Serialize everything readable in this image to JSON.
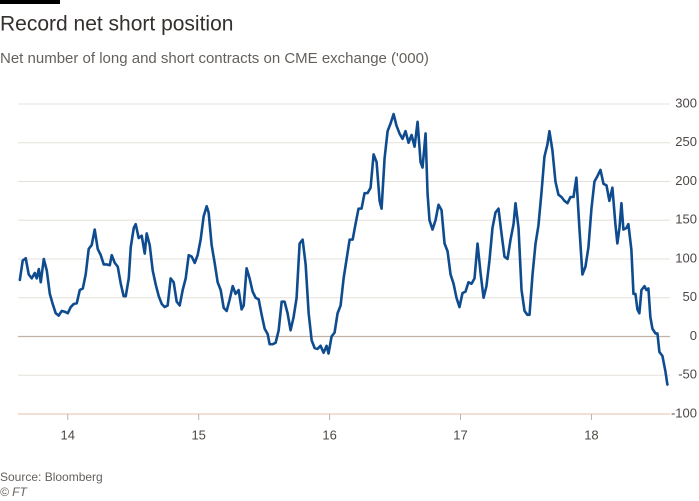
{
  "chart_data": {
    "type": "line",
    "title": "Record net short position",
    "subtitle": "Net number of long and short contracts on CME exchange ('000)",
    "source": "Source: Bloomberg",
    "credit": "© FT",
    "color": "#0f4c8f",
    "xlim": [
      13.62,
      18.6
    ],
    "xticks": [
      14,
      15,
      16,
      17,
      18
    ],
    "ylim": [
      -100,
      300
    ],
    "yticks": [
      -100,
      -50,
      0,
      50,
      100,
      150,
      200,
      250,
      300
    ],
    "grid": true,
    "x": [
      13.634,
      13.656,
      13.679,
      13.702,
      13.725,
      13.748,
      13.763,
      13.779,
      13.794,
      13.817,
      13.84,
      13.863,
      13.885,
      13.908,
      13.931,
      13.954,
      13.977,
      14.0,
      14.023,
      14.046,
      14.069,
      14.092,
      14.115,
      14.137,
      14.16,
      14.183,
      14.206,
      14.229,
      14.252,
      14.275,
      14.298,
      14.321,
      14.336,
      14.359,
      14.382,
      14.405,
      14.427,
      14.443,
      14.466,
      14.481,
      14.504,
      14.519,
      14.542,
      14.565,
      14.588,
      14.603,
      14.626,
      14.649,
      14.672,
      14.695,
      14.718,
      14.74,
      14.763,
      14.786,
      14.809,
      14.832,
      14.855,
      14.878,
      14.901,
      14.924,
      14.947,
      14.97,
      14.992,
      15.015,
      15.038,
      15.061,
      15.076,
      15.099,
      15.122,
      15.145,
      15.168,
      15.191,
      15.214,
      15.237,
      15.26,
      15.282,
      15.305,
      15.328,
      15.344,
      15.366,
      15.389,
      15.412,
      15.435,
      15.458,
      15.481,
      15.504,
      15.527,
      15.542,
      15.565,
      15.588,
      15.611,
      15.634,
      15.656,
      15.679,
      15.702,
      15.725,
      15.748,
      15.771,
      15.794,
      15.817,
      15.84,
      15.863,
      15.886,
      15.908,
      15.931,
      15.954,
      15.977,
      15.992,
      16.015,
      16.038,
      16.061,
      16.084,
      16.107,
      16.13,
      16.153,
      16.176,
      16.198,
      16.221,
      16.244,
      16.267,
      16.29,
      16.313,
      16.336,
      16.359,
      16.382,
      16.397,
      16.42,
      16.443,
      16.466,
      16.489,
      16.511,
      16.534,
      16.557,
      16.58,
      16.603,
      16.626,
      16.649,
      16.672,
      16.695,
      16.71,
      16.733,
      16.748,
      16.763,
      16.786,
      16.809,
      16.832,
      16.855,
      16.878,
      16.901,
      16.924,
      16.947,
      16.969,
      16.992,
      17.015,
      17.038,
      17.061,
      17.084,
      17.107,
      17.13,
      17.153,
      17.176,
      17.198,
      17.221,
      17.244,
      17.267,
      17.29,
      17.313,
      17.336,
      17.359,
      17.382,
      17.405,
      17.42,
      17.443,
      17.466,
      17.489,
      17.511,
      17.527,
      17.55,
      17.573,
      17.595,
      17.618,
      17.641,
      17.664,
      17.679,
      17.702,
      17.725,
      17.748,
      17.771,
      17.794,
      17.817,
      17.84,
      17.863,
      17.885,
      17.908,
      17.931,
      17.954,
      17.977,
      18.0,
      18.023,
      18.046,
      18.069,
      18.092,
      18.115,
      18.137,
      18.16,
      18.183,
      18.198,
      18.214,
      18.229,
      18.244,
      18.267,
      18.282,
      18.305,
      18.321,
      18.336,
      18.351,
      18.366,
      18.382,
      18.405,
      18.42,
      18.435,
      18.45,
      18.466,
      18.489,
      18.504,
      18.519,
      18.542,
      18.565,
      18.58
    ],
    "values": [
      73,
      98,
      101,
      80,
      75,
      82,
      75,
      87,
      70,
      100,
      85,
      55,
      42,
      30,
      27,
      33,
      32,
      30,
      38,
      42,
      43,
      60,
      62,
      80,
      113,
      118,
      138,
      113,
      105,
      93,
      93,
      92,
      105,
      95,
      90,
      68,
      52,
      52,
      75,
      115,
      140,
      145,
      127,
      130,
      107,
      133,
      118,
      85,
      67,
      52,
      42,
      38,
      40,
      75,
      70,
      45,
      40,
      60,
      75,
      105,
      103,
      95,
      105,
      125,
      155,
      168,
      160,
      118,
      95,
      70,
      60,
      37,
      33,
      48,
      65,
      55,
      60,
      35,
      40,
      88,
      75,
      58,
      50,
      48,
      28,
      10,
      3,
      -10,
      -10,
      -8,
      8,
      45,
      45,
      30,
      8,
      25,
      50,
      120,
      125,
      93,
      30,
      -5,
      -15,
      -16,
      -12,
      -21,
      -12,
      -22,
      0,
      5,
      30,
      40,
      75,
      100,
      125,
      125,
      145,
      165,
      165,
      185,
      185,
      192,
      235,
      225,
      175,
      165,
      230,
      265,
      275,
      287,
      272,
      262,
      255,
      265,
      250,
      260,
      245,
      277,
      225,
      218,
      262,
      185,
      150,
      138,
      150,
      170,
      163,
      120,
      110,
      80,
      68,
      50,
      38,
      56,
      58,
      70,
      68,
      75,
      120,
      82,
      50,
      65,
      98,
      140,
      160,
      165,
      133,
      103,
      100,
      125,
      145,
      172,
      140,
      60,
      33,
      28,
      28,
      80,
      120,
      143,
      185,
      232,
      248,
      265,
      240,
      200,
      183,
      180,
      175,
      172,
      180,
      180,
      205,
      140,
      80,
      90,
      115,
      165,
      200,
      207,
      215,
      197,
      195,
      175,
      192,
      145,
      120,
      140,
      172,
      138,
      140,
      145,
      112,
      55,
      55,
      35,
      30,
      60,
      65,
      60,
      62,
      25,
      10,
      4,
      4,
      -20,
      -25,
      -45,
      -62
    ]
  }
}
